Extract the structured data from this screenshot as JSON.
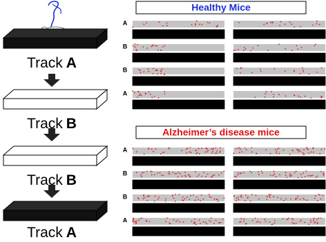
{
  "tracks": [
    {
      "word": "Track",
      "letter": "A"
    },
    {
      "word": "Track",
      "letter": "B"
    },
    {
      "word": "Track",
      "letter": "B"
    },
    {
      "word": "Track",
      "letter": "A"
    }
  ],
  "panels": [
    {
      "title": "Healthy Mice",
      "row_labels": [
        "A",
        "B",
        "B",
        "A"
      ]
    },
    {
      "title": "Alzheimer’s disease mice",
      "row_labels": [
        "A",
        "B",
        "B",
        "A"
      ]
    }
  ]
}
